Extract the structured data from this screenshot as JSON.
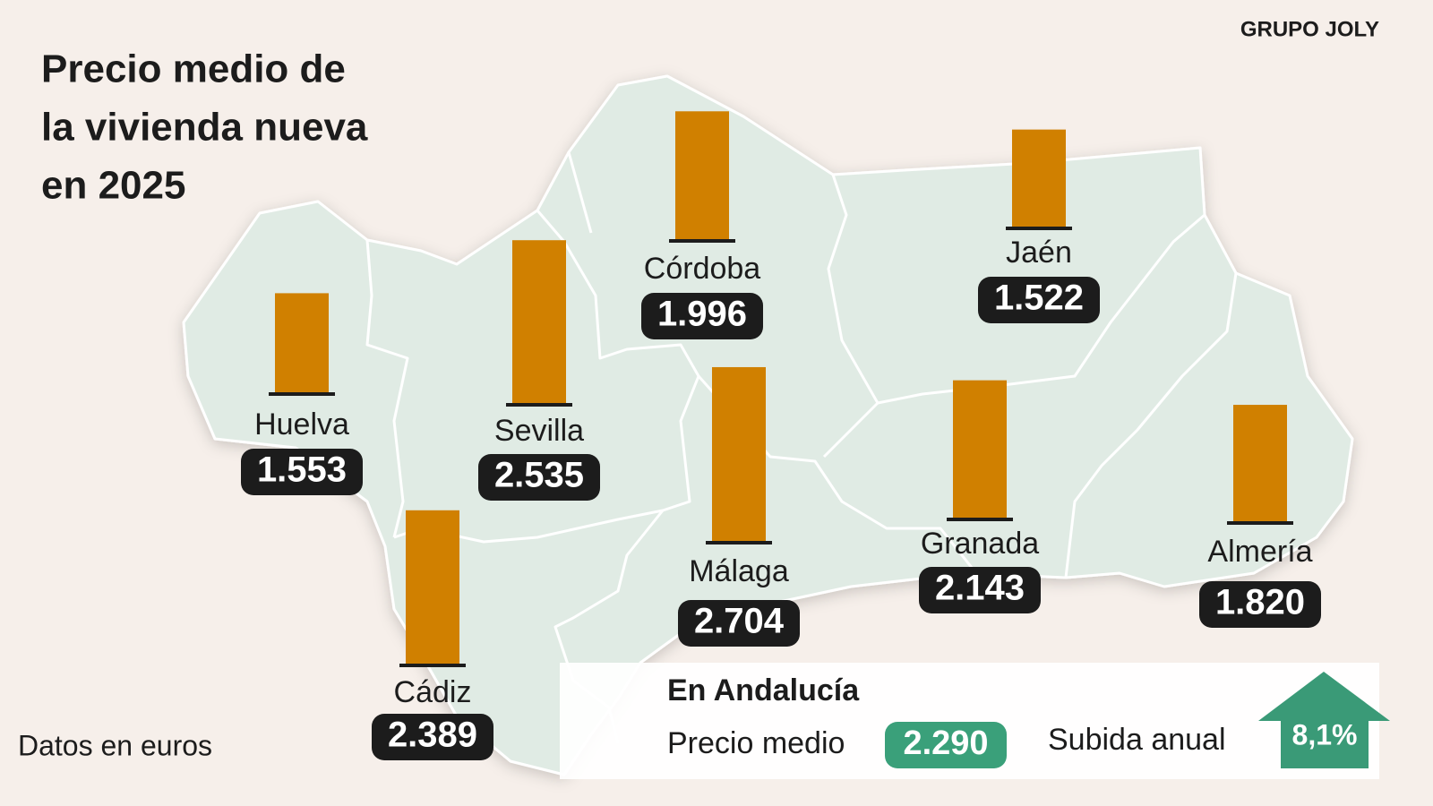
{
  "chart_data": {
    "type": "bar",
    "title": [
      "Precio medio de",
      "la vivienda nueva",
      "en 2025"
    ],
    "source": "GRUPO JOLY",
    "note": "Datos en euros",
    "categories": [
      "Huelva",
      "Sevilla",
      "Córdoba",
      "Jaén",
      "Cádiz",
      "Málaga",
      "Granada",
      "Almería"
    ],
    "values": [
      1553,
      2535,
      1996,
      1522,
      2389,
      2704,
      2143,
      1820
    ],
    "value_labels": [
      "1.553",
      "2.535",
      "1.996",
      "1.522",
      "2.389",
      "2.704",
      "2.143",
      "1.820"
    ],
    "color": "#d08000",
    "summary": {
      "heading": "En Andalucía",
      "average_label": "Precio medio",
      "average": "2.290",
      "change_label": "Subida anual",
      "change": "8,1%"
    }
  }
}
